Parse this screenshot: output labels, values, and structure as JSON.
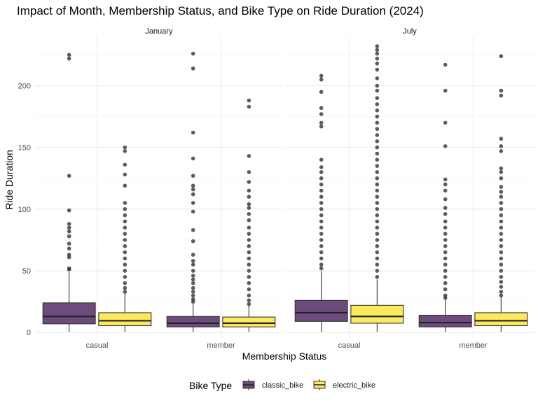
{
  "chart_data": {
    "type": "box",
    "title": "Impact of Month, Membership Status, and Bike Type on Ride Duration (2024)",
    "xlabel": "Membership Status",
    "ylabel": "Ride Duration",
    "ylim": [
      -5,
      240
    ],
    "yticks": [
      0,
      50,
      100,
      150,
      200
    ],
    "categories": [
      "casual",
      "member"
    ],
    "grid": true,
    "legend": {
      "title": "Bike Type",
      "position": "bottom",
      "entries": [
        {
          "name": "classic_bike",
          "color": "#6d4c7d"
        },
        {
          "name": "electric_bike",
          "color": "#fde95e"
        }
      ]
    },
    "panels": [
      {
        "label": "January",
        "boxes": [
          {
            "category": "casual",
            "bike": "classic_bike",
            "q1": 7,
            "median": 13,
            "q3": 24,
            "whisker_low": 0.5,
            "whisker_high": 49,
            "outliers": [
              51,
              52,
              61,
              63,
              68,
              72,
              78,
              82,
              85,
              88,
              99,
              127,
              222,
              225
            ]
          },
          {
            "category": "casual",
            "bike": "electric_bike",
            "q1": 5.5,
            "median": 9.5,
            "q3": 16,
            "whisker_low": 0.5,
            "whisker_high": 32,
            "outliers": [
              33,
              36,
              40,
              45,
              50,
              55,
              60,
              65,
              70,
              75,
              80,
              85,
              90,
              95,
              100,
              105,
              119,
              128,
              136,
              147,
              150
            ]
          },
          {
            "category": "member",
            "bike": "classic_bike",
            "q1": 4.5,
            "median": 7.5,
            "q3": 13,
            "whisker_low": 0.5,
            "whisker_high": 24,
            "outliers": [
              25,
              27,
              30,
              33,
              36,
              40,
              43,
              46,
              50,
              55,
              58,
              63,
              74,
              83,
              98,
              105,
              112,
              116,
              119,
              127,
              141,
              162,
              214,
              226
            ]
          },
          {
            "category": "member",
            "bike": "electric_bike",
            "q1": 4.5,
            "median": 7.5,
            "q3": 12.5,
            "whisker_low": 0.5,
            "whisker_high": 22,
            "outliers": [
              23,
              26,
              30,
              35,
              40,
              45,
              50,
              55,
              60,
              65,
              70,
              75,
              80,
              85,
              91,
              96,
              101,
              104,
              110,
              115,
              122,
              130,
              143,
              183,
              188
            ]
          }
        ]
      },
      {
        "label": "July",
        "boxes": [
          {
            "category": "casual",
            "bike": "classic_bike",
            "q1": 9,
            "median": 16,
            "q3": 26,
            "whisker_low": 0.5,
            "whisker_high": 50,
            "outliers": [
              52,
              55,
              60,
              65,
              70,
              75,
              80,
              85,
              90,
              95,
              100,
              105,
              110,
              115,
              120,
              125,
              130,
              134,
              140,
              167,
              170,
              177,
              182,
              195,
              205,
              208
            ]
          },
          {
            "category": "casual",
            "bike": "electric_bike",
            "q1": 7.5,
            "median": 13,
            "q3": 22,
            "whisker_low": 0.5,
            "whisker_high": 43,
            "outliers": [
              45,
              50,
              55,
              60,
              65,
              70,
              75,
              80,
              85,
              90,
              95,
              100,
              105,
              110,
              115,
              120,
              125,
              130,
              135,
              140,
              145,
              150,
              155,
              160,
              165,
              170,
              175,
              180,
              185,
              190,
              196,
              200,
              206,
              213,
              218,
              222,
              226,
              229,
              232
            ]
          },
          {
            "category": "member",
            "bike": "classic_bike",
            "q1": 4.5,
            "median": 8,
            "q3": 14,
            "whisker_low": 0.5,
            "whisker_high": 27,
            "outliers": [
              28,
              30,
              35,
              40,
              45,
              50,
              55,
              60,
              65,
              70,
              75,
              80,
              85,
              90,
              96,
              101,
              108,
              115,
              120,
              124,
              151,
              170,
              196,
              217
            ]
          },
          {
            "category": "member",
            "bike": "electric_bike",
            "q1": 5.5,
            "median": 9.5,
            "q3": 16,
            "whisker_low": 0.5,
            "whisker_high": 29,
            "outliers": [
              30,
              33,
              37,
              41,
              45,
              50,
              55,
              60,
              65,
              70,
              75,
              80,
              85,
              90,
              95,
              100,
              105,
              110,
              114,
              118,
              125,
              130,
              133,
              147,
              151,
              157,
              192,
              196,
              224
            ]
          }
        ]
      }
    ]
  }
}
